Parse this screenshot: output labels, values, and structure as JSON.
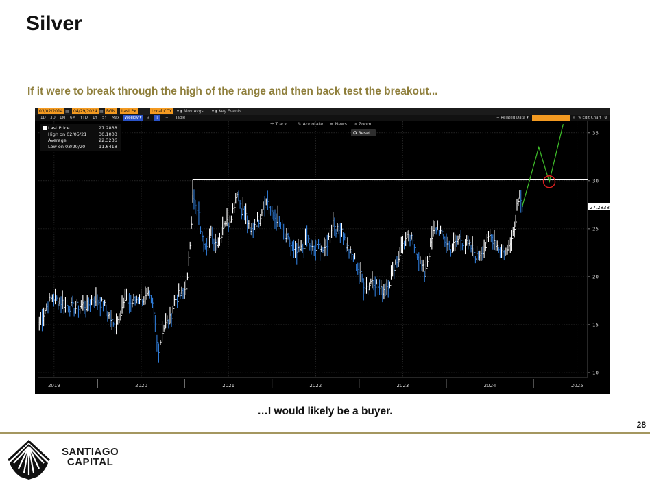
{
  "slide": {
    "title": "Silver",
    "subtitle": "If it were to break through the high of the range and then back test the breakout...",
    "caption": "…I would likely be a buyer.",
    "page_number": "28"
  },
  "logo": {
    "line1": "SANTIAGO",
    "line2": "CAPITAL"
  },
  "toolbar": {
    "start_date": "03/02/2014",
    "end_date": "04/29/2024",
    "source": "BGN",
    "field": "Last Px",
    "currency": "Local CCY",
    "mov_avgs": "Mov Avgs",
    "key_events": "Key Events",
    "periods": [
      "1D",
      "3D",
      "1M",
      "6M",
      "YTD",
      "1Y",
      "5Y",
      "Max"
    ],
    "frequency": "Weekly",
    "table": "Table",
    "related_data": "Related Data",
    "edit_chart": "Edit Chart"
  },
  "chart_tools": {
    "track": "Track",
    "annotate": "Annotate",
    "news": "News",
    "zoom": "Zoom",
    "reset": "Reset"
  },
  "legend": {
    "items": [
      {
        "label": "Last Price",
        "value": "27.2838"
      },
      {
        "label": "High on 02/05/21",
        "value": "30.1003"
      },
      {
        "label": "Average",
        "value": "22.3236"
      },
      {
        "label": "Low on 03/20/20",
        "value": "11.6418"
      }
    ]
  },
  "colors": {
    "price_up": "#ffffff",
    "price_down": "#2f7bd6",
    "projection": "#3fbf2a",
    "resistance": "#ffffff",
    "highlight_circle": "#e02020",
    "last_price_tag_bg": "#ffffff",
    "background": "#000000",
    "accent_gold": "#8f7f3c"
  },
  "chart_data": {
    "type": "line",
    "title": "",
    "xlabel": "",
    "ylabel": "",
    "frequency": "Weekly",
    "ylim": [
      9.5,
      36.2
    ],
    "xlim": [
      2018.82,
      2025.12
    ],
    "y_ticks": [
      10,
      15,
      20,
      25,
      30,
      35
    ],
    "x_tick_labels": [
      "2019",
      "2020",
      "2021",
      "2022",
      "2023",
      "2024",
      "2025"
    ],
    "x_tick_values": [
      2019.0,
      2020.0,
      2021.0,
      2022.0,
      2023.0,
      2024.0,
      2025.0
    ],
    "last_price_label": "27.2838",
    "last_price": 27.2838,
    "grid": true,
    "series": [
      {
        "style": "bar-ohlc",
        "points": [
          [
            2018.83,
            15.2
          ],
          [
            2018.88,
            16.2
          ],
          [
            2018.93,
            17.2
          ],
          [
            2018.98,
            17.9
          ],
          [
            2019.03,
            17.6
          ],
          [
            2019.08,
            17.4
          ],
          [
            2019.13,
            17.1
          ],
          [
            2019.18,
            16.9
          ],
          [
            2019.23,
            16.7
          ],
          [
            2019.28,
            16.9
          ],
          [
            2019.33,
            17.1
          ],
          [
            2019.38,
            16.9
          ],
          [
            2019.43,
            17.6
          ],
          [
            2019.48,
            17.8
          ],
          [
            2019.53,
            17.3
          ],
          [
            2019.58,
            16.9
          ],
          [
            2019.63,
            15.9
          ],
          [
            2019.68,
            14.9
          ],
          [
            2019.73,
            15.6
          ],
          [
            2019.78,
            16.9
          ],
          [
            2019.83,
            17.6
          ],
          [
            2019.88,
            17.2
          ],
          [
            2019.93,
            17.6
          ],
          [
            2019.98,
            17.9
          ],
          [
            2020.03,
            17.7
          ],
          [
            2020.08,
            17.9
          ],
          [
            2020.13,
            17.0
          ],
          [
            2020.16,
            15.1
          ],
          [
            2020.2,
            12.3
          ],
          [
            2020.24,
            14.4
          ],
          [
            2020.28,
            15.0
          ],
          [
            2020.33,
            15.5
          ],
          [
            2020.38,
            17.5
          ],
          [
            2020.43,
            18.0
          ],
          [
            2020.48,
            18.2
          ],
          [
            2020.53,
            19.6
          ],
          [
            2020.56,
            23.5
          ],
          [
            2020.59,
            28.5
          ],
          [
            2020.62,
            27.2
          ],
          [
            2020.66,
            26.3
          ],
          [
            2020.7,
            23.8
          ],
          [
            2020.75,
            23.6
          ],
          [
            2020.8,
            24.3
          ],
          [
            2020.85,
            23.6
          ],
          [
            2020.9,
            24.0
          ],
          [
            2020.95,
            25.8
          ],
          [
            2021.0,
            25.6
          ],
          [
            2021.05,
            27.0
          ],
          [
            2021.1,
            29.0
          ],
          [
            2021.15,
            27.0
          ],
          [
            2021.2,
            26.3
          ],
          [
            2021.25,
            24.5
          ],
          [
            2021.3,
            25.6
          ],
          [
            2021.35,
            26.0
          ],
          [
            2021.4,
            27.6
          ],
          [
            2021.45,
            27.9
          ],
          [
            2021.5,
            26.4
          ],
          [
            2021.55,
            26.1
          ],
          [
            2021.6,
            25.4
          ],
          [
            2021.65,
            24.0
          ],
          [
            2021.7,
            23.6
          ],
          [
            2021.75,
            22.5
          ],
          [
            2021.8,
            22.5
          ],
          [
            2021.85,
            23.0
          ],
          [
            2021.9,
            24.2
          ],
          [
            2021.95,
            22.9
          ],
          [
            2022.0,
            22.8
          ],
          [
            2022.05,
            23.3
          ],
          [
            2022.1,
            22.5
          ],
          [
            2022.15,
            24.0
          ],
          [
            2022.2,
            25.8
          ],
          [
            2022.25,
            24.7
          ],
          [
            2022.3,
            25.1
          ],
          [
            2022.35,
            23.3
          ],
          [
            2022.4,
            22.4
          ],
          [
            2022.45,
            21.8
          ],
          [
            2022.5,
            20.5
          ],
          [
            2022.55,
            19.3
          ],
          [
            2022.6,
            18.9
          ],
          [
            2022.65,
            19.8
          ],
          [
            2022.7,
            19.2
          ],
          [
            2022.75,
            18.5
          ],
          [
            2022.8,
            18.9
          ],
          [
            2022.85,
            19.5
          ],
          [
            2022.9,
            21.2
          ],
          [
            2022.95,
            22.0
          ],
          [
            2023.0,
            23.5
          ],
          [
            2023.05,
            24.0
          ],
          [
            2023.1,
            23.8
          ],
          [
            2023.15,
            22.8
          ],
          [
            2023.2,
            21.5
          ],
          [
            2023.25,
            20.3
          ],
          [
            2023.3,
            22.5
          ],
          [
            2023.35,
            24.5
          ],
          [
            2023.4,
            25.3
          ],
          [
            2023.45,
            24.2
          ],
          [
            2023.5,
            23.6
          ],
          [
            2023.55,
            22.9
          ],
          [
            2023.6,
            23.4
          ],
          [
            2023.65,
            24.1
          ],
          [
            2023.7,
            23.5
          ],
          [
            2023.75,
            23.2
          ],
          [
            2023.8,
            22.9
          ],
          [
            2023.85,
            22.0
          ],
          [
            2023.9,
            22.7
          ],
          [
            2023.95,
            23.2
          ],
          [
            2024.0,
            24.2
          ],
          [
            2024.05,
            23.8
          ],
          [
            2024.1,
            23.0
          ],
          [
            2024.15,
            22.5
          ],
          [
            2024.2,
            22.6
          ],
          [
            2024.25,
            24.5
          ],
          [
            2024.28,
            25.0
          ],
          [
            2024.31,
            27.5
          ],
          [
            2024.34,
            29.0
          ],
          [
            2024.37,
            27.3
          ]
        ]
      },
      {
        "style": "projection-line",
        "points": [
          [
            2024.37,
            27.3
          ],
          [
            2024.56,
            33.5
          ],
          [
            2024.68,
            29.9
          ],
          [
            2024.84,
            35.9
          ]
        ]
      }
    ],
    "reference_lines": [
      {
        "y": 30.1,
        "x_from": 2020.59,
        "x_to": 2025.12
      }
    ],
    "annotations": [
      {
        "shape": "circle",
        "x": 2024.68,
        "y": 29.9
      }
    ]
  }
}
